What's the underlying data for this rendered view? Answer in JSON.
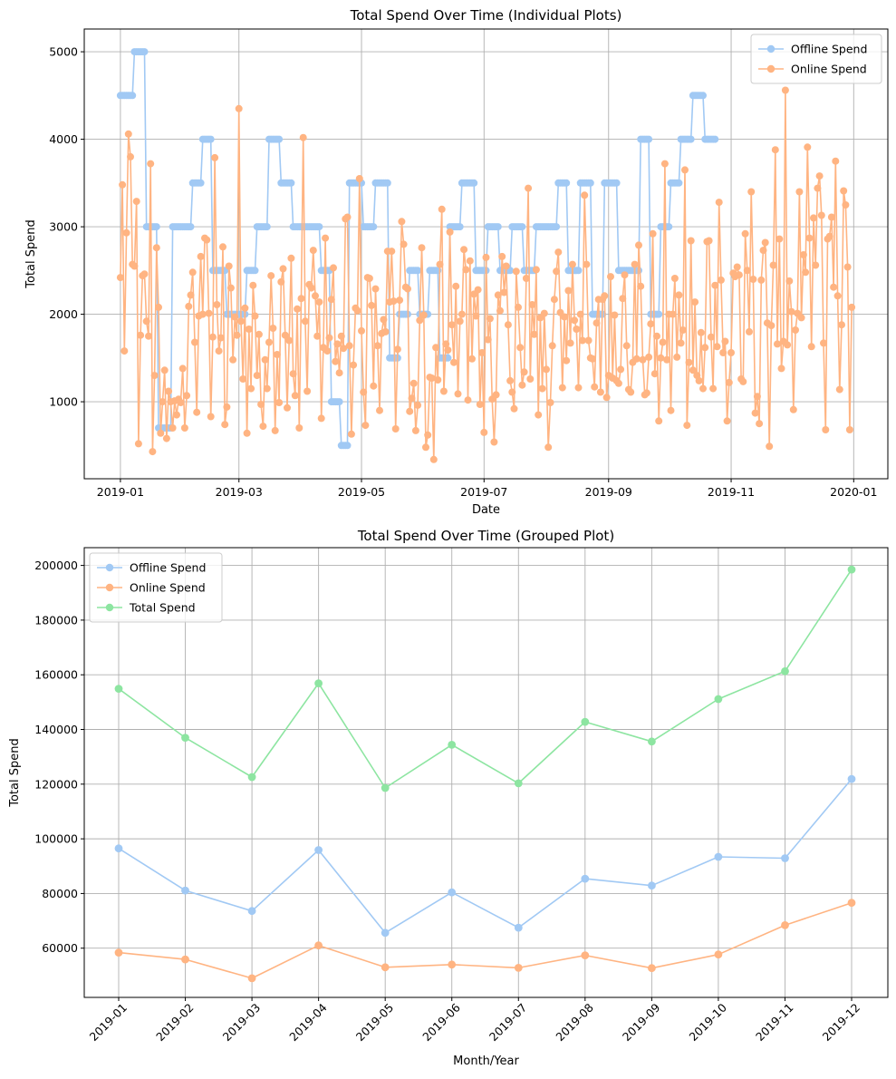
{
  "colors": {
    "offline": "#a1c9f4",
    "online": "#ffb482",
    "total": "#8de5a1"
  },
  "chart_data": [
    {
      "type": "line",
      "title": "Total Spend Over Time (Individual Plots)",
      "xlabel": "Date",
      "ylabel": "Total Spend",
      "x_axis": "date",
      "xlim": [
        "2018-12-14",
        "2020-01-18"
      ],
      "ylim": [
        120,
        5260
      ],
      "xticks": [
        {
          "date": "2019-01-01",
          "label": "2019-01"
        },
        {
          "date": "2019-03-01",
          "label": "2019-03"
        },
        {
          "date": "2019-05-01",
          "label": "2019-05"
        },
        {
          "date": "2019-07-01",
          "label": "2019-07"
        },
        {
          "date": "2019-09-01",
          "label": "2019-09"
        },
        {
          "date": "2019-11-01",
          "label": "2019-11"
        },
        {
          "date": "2020-01-01",
          "label": "2020-01"
        }
      ],
      "yticks": [
        1000,
        2000,
        3000,
        4000,
        5000
      ],
      "grid": true,
      "legend": "top-right",
      "series": [
        {
          "name": "Offline Spend",
          "color_key": "offline",
          "start_date": "2019-01-01",
          "step_days": 1,
          "segments": [
            [
              7,
              4500
            ],
            [
              6,
              5000
            ],
            [
              6,
              3000
            ],
            [
              7,
              700
            ],
            [
              10,
              3000
            ],
            [
              5,
              3500
            ],
            [
              5,
              4000
            ],
            [
              7,
              2500
            ],
            [
              10,
              2000
            ],
            [
              5,
              2500
            ],
            [
              6,
              3000
            ],
            [
              6,
              4000
            ],
            [
              6,
              3500
            ],
            [
              14,
              3000
            ],
            [
              5,
              2500
            ],
            [
              5,
              1000
            ],
            [
              4,
              500
            ],
            [
              7,
              3500
            ],
            [
              6,
              3000
            ],
            [
              7,
              3500
            ],
            [
              5,
              1500
            ],
            [
              5,
              2000
            ],
            [
              5,
              2500
            ],
            [
              5,
              2000
            ],
            [
              5,
              2500
            ],
            [
              5,
              1500
            ],
            [
              6,
              3000
            ],
            [
              7,
              3500
            ],
            [
              6,
              2500
            ],
            [
              6,
              3000
            ],
            [
              6,
              2500
            ],
            [
              6,
              3000
            ],
            [
              6,
              2500
            ],
            [
              11,
              3000
            ],
            [
              5,
              3500
            ],
            [
              6,
              2500
            ],
            [
              6,
              3500
            ],
            [
              6,
              2000
            ],
            [
              7,
              3500
            ],
            [
              6,
              2500
            ],
            [
              5,
              2500
            ],
            [
              5,
              4000
            ],
            [
              5,
              2000
            ],
            [
              5,
              3000
            ],
            [
              5,
              3500
            ],
            [
              6,
              4000
            ],
            [
              6,
              4500
            ],
            [
              6,
              4000
            ]
          ]
        },
        {
          "name": "Online Spend",
          "color_key": "online",
          "start_date": "2019-01-01",
          "step_days": 1,
          "values": [
            2420,
            3480,
            1580,
            2930,
            4060,
            3800,
            2570,
            2550,
            3290,
            520,
            1760,
            2440,
            2460,
            1920,
            1750,
            3720,
            430,
            1300,
            2760,
            2080,
            640,
            1000,
            1360,
            580,
            1120,
            1000,
            700,
            1010,
            850,
            1030,
            990,
            1380,
            700,
            1070,
            2090,
            2220,
            2480,
            1680,
            880,
            1980,
            2660,
            2000,
            2870,
            2850,
            2010,
            830,
            1740,
            3790,
            2110,
            1580,
            1730,
            2770,
            740,
            940,
            2550,
            2300,
            1480,
            1970,
            1760,
            4350,
            1920,
            1260,
            2070,
            640,
            1830,
            1150,
            2330,
            1980,
            1300,
            1770,
            970,
            720,
            1480,
            1150,
            1680,
            2440,
            1840,
            670,
            1540,
            990,
            2370,
            2520,
            1760,
            930,
            1700,
            2640,
            1320,
            1070,
            2060,
            700,
            2180,
            4020,
            1920,
            1120,
            2340,
            2300,
            2730,
            2210,
            1750,
            2140,
            810,
            1620,
            2870,
            1580,
            1730,
            2170,
            2530,
            1460,
            1660,
            1330,
            1750,
            1610,
            3090,
            3110,
            1640,
            630,
            1420,
            2070,
            2040,
            3550,
            1810,
            1110,
            730,
            2420,
            2410,
            2100,
            1180,
            2290,
            1640,
            900,
            1780,
            1940,
            1800,
            2720,
            2140,
            2720,
            2150,
            690,
            1600,
            2160,
            3060,
            2800,
            2310,
            2290,
            890,
            1040,
            1210,
            670,
            960,
            1930,
            2760,
            1990,
            480,
            620,
            1280,
            1270,
            340,
            1620,
            1250,
            2570,
            3200,
            1120,
            1660,
            1590,
            2940,
            1880,
            1450,
            2320,
            1090,
            1920,
            2000,
            2740,
            2510,
            1020,
            2610,
            1490,
            2230,
            1980,
            2280,
            970,
            1560,
            650,
            2650,
            1710,
            1950,
            1030,
            540,
            1080,
            2220,
            2040,
            2660,
            2250,
            2550,
            1880,
            1240,
            1110,
            920,
            2490,
            2080,
            1620,
            1190,
            1340,
            2410,
            3440,
            1260,
            2110,
            1770,
            2510,
            850,
            1960,
            1150,
            2010,
            1370,
            480,
            990,
            1640,
            2170,
            2490,
            2710,
            2020,
            1160,
            1970,
            1470,
            2270,
            1670,
            2570,
            1930,
            1830,
            1160,
            2000,
            1700,
            3360,
            2570,
            1700,
            1500,
            1490,
            1170,
            1900,
            2170,
            1110,
            2170,
            2210,
            1050,
            1300,
            2430,
            1270,
            1990,
            1240,
            1210,
            1370,
            2180,
            2450,
            1640,
            1140,
            1110,
            1450,
            2570,
            1490,
            2790,
            2320,
            1480,
            1080,
            1100,
            1510,
            1890,
            2920,
            1320,
            1750,
            780,
            1500,
            1680,
            3720,
            1480,
            2000,
            900,
            2000,
            2410,
            1510,
            2220,
            1670,
            1820,
            3650,
            730,
            1450,
            2840,
            1360,
            2140,
            1300,
            1240,
            1790,
            1150,
            1620,
            2830,
            2840,
            1740,
            1150,
            2330,
            1630,
            3280,
            2390,
            1560,
            1690,
            780,
            1220,
            1560,
            2470,
            2430,
            2540,
            2450,
            1260,
            1230,
            2920,
            2500,
            1800,
            3400,
            2400,
            870,
            1060,
            750,
            2390,
            2730,
            2820,
            1900,
            490,
            1870,
            2560,
            3880,
            1660,
            2860,
            1380,
            1690,
            4560,
            1650,
            2380,
            2030,
            910,
            1820,
            2010,
            3400,
            1960,
            2680,
            2480,
            3910,
            2870,
            1630,
            3100,
            2560,
            3440,
            3580,
            3130,
            1670,
            680,
            2860,
            2890,
            3110,
            2310,
            3750,
            2210,
            1140,
            1880,
            3410,
            3250,
            2540,
            680,
            2080
          ]
        }
      ]
    },
    {
      "type": "line",
      "title": "Total Spend Over Time (Grouped Plot)",
      "xlabel": "Month/Year",
      "ylabel": "Total Spend",
      "categories": [
        "2019-01",
        "2019-02",
        "2019-03",
        "2019-04",
        "2019-05",
        "2019-06",
        "2019-07",
        "2019-08",
        "2019-09",
        "2019-10",
        "2019-11",
        "2019-12"
      ],
      "ylim": [
        42000,
        206500
      ],
      "yticks": [
        60000,
        80000,
        100000,
        120000,
        140000,
        160000,
        180000,
        200000
      ],
      "grid": true,
      "legend": "top-left",
      "series": [
        {
          "name": "Offline Spend",
          "color_key": "offline",
          "values": [
            96500,
            81100,
            73600,
            95900,
            65600,
            80400,
            67500,
            85400,
            82900,
            93400,
            92900,
            121900
          ]
        },
        {
          "name": "Online Spend",
          "color_key": "online",
          "values": [
            58400,
            55900,
            49000,
            61000,
            53000,
            54000,
            52800,
            57400,
            52700,
            57700,
            68400,
            76600
          ]
        },
        {
          "name": "Total Spend",
          "color_key": "total",
          "values": [
            154900,
            137000,
            122600,
            156900,
            118600,
            134400,
            120300,
            142800,
            135600,
            151100,
            161300,
            198500
          ]
        }
      ]
    }
  ]
}
